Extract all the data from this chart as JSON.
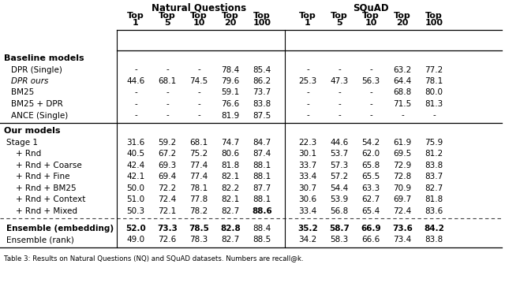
{
  "nq_header": "Natural Questions",
  "sq_header": "SQuAD",
  "section1_label": "Baseline models",
  "section2_label": "Our models",
  "rows_baseline": [
    {
      "name": "DPR (Single)",
      "italic": false,
      "nq": [
        "-",
        "-",
        "-",
        "78.4",
        "85.4"
      ],
      "sq": [
        "-",
        "-",
        "-",
        "63.2",
        "77.2"
      ]
    },
    {
      "name": "DPR ours",
      "italic": true,
      "nq": [
        "44.6",
        "68.1",
        "74.5",
        "79.6",
        "86.2"
      ],
      "sq": [
        "25.3",
        "47.3",
        "56.3",
        "64.4",
        "78.1"
      ]
    },
    {
      "name": "BM25",
      "italic": false,
      "nq": [
        "-",
        "-",
        "-",
        "59.1",
        "73.7"
      ],
      "sq": [
        "-",
        "-",
        "-",
        "68.8",
        "80.0"
      ]
    },
    {
      "name": "BM25 + DPR",
      "italic": false,
      "nq": [
        "-",
        "-",
        "-",
        "76.6",
        "83.8"
      ],
      "sq": [
        "-",
        "-",
        "-",
        "71.5",
        "81.3"
      ]
    },
    {
      "name": "ANCE (Single)",
      "italic": false,
      "nq": [
        "-",
        "-",
        "-",
        "81.9",
        "87.5"
      ],
      "sq": [
        "-",
        "-",
        "-",
        "-",
        "-"
      ]
    }
  ],
  "rows_ours": [
    {
      "name": "Stage 1",
      "nq": [
        "31.6",
        "59.2",
        "68.1",
        "74.7",
        "84.7"
      ],
      "sq": [
        "22.3",
        "44.6",
        "54.2",
        "61.9",
        "75.9"
      ],
      "bold_nq": [
        false,
        false,
        false,
        false,
        false
      ],
      "bold_sq": [
        false,
        false,
        false,
        false,
        false
      ]
    },
    {
      "name": "+ Rnd",
      "nq": [
        "40.5",
        "67.2",
        "75.2",
        "80.6",
        "87.4"
      ],
      "sq": [
        "30.1",
        "53.7",
        "62.0",
        "69.5",
        "81.2"
      ],
      "bold_nq": [
        false,
        false,
        false,
        false,
        false
      ],
      "bold_sq": [
        false,
        false,
        false,
        false,
        false
      ]
    },
    {
      "name": "+ Rnd + Coarse",
      "nq": [
        "42.4",
        "69.3",
        "77.4",
        "81.8",
        "88.1"
      ],
      "sq": [
        "33.7",
        "57.3",
        "65.8",
        "72.9",
        "83.8"
      ],
      "bold_nq": [
        false,
        false,
        false,
        false,
        false
      ],
      "bold_sq": [
        false,
        false,
        false,
        false,
        false
      ]
    },
    {
      "name": "+ Rnd + Fine",
      "nq": [
        "42.1",
        "69.4",
        "77.4",
        "82.1",
        "88.1"
      ],
      "sq": [
        "33.4",
        "57.2",
        "65.5",
        "72.8",
        "83.7"
      ],
      "bold_nq": [
        false,
        false,
        false,
        false,
        false
      ],
      "bold_sq": [
        false,
        false,
        false,
        false,
        false
      ]
    },
    {
      "name": "+ Rnd + BM25",
      "nq": [
        "50.0",
        "72.2",
        "78.1",
        "82.2",
        "87.7"
      ],
      "sq": [
        "30.7",
        "54.4",
        "63.3",
        "70.9",
        "82.7"
      ],
      "bold_nq": [
        false,
        false,
        false,
        false,
        false
      ],
      "bold_sq": [
        false,
        false,
        false,
        false,
        false
      ]
    },
    {
      "name": "+ Rnd + Context",
      "nq": [
        "51.0",
        "72.4",
        "77.8",
        "82.1",
        "88.1"
      ],
      "sq": [
        "30.6",
        "53.9",
        "62.7",
        "69.7",
        "81.8"
      ],
      "bold_nq": [
        false,
        false,
        false,
        false,
        false
      ],
      "bold_sq": [
        false,
        false,
        false,
        false,
        false
      ]
    },
    {
      "name": "+ Rnd + Mixed",
      "nq": [
        "50.3",
        "72.1",
        "78.2",
        "82.7",
        "88.6"
      ],
      "sq": [
        "33.4",
        "56.8",
        "65.4",
        "72.4",
        "83.6"
      ],
      "bold_nq": [
        false,
        false,
        false,
        false,
        true
      ],
      "bold_sq": [
        false,
        false,
        false,
        false,
        false
      ]
    }
  ],
  "rows_ensemble": [
    {
      "name": "Ensemble (embedding)",
      "bold_name": true,
      "nq": [
        "52.0",
        "73.3",
        "78.5",
        "82.8",
        "88.4"
      ],
      "sq": [
        "35.2",
        "58.7",
        "66.9",
        "73.6",
        "84.2"
      ],
      "bold_nq": [
        true,
        true,
        true,
        true,
        false
      ],
      "bold_sq": [
        true,
        true,
        true,
        true,
        true
      ]
    },
    {
      "name": "Ensemble (rank)",
      "bold_name": false,
      "nq": [
        "49.0",
        "72.6",
        "78.3",
        "82.7",
        "88.5"
      ],
      "sq": [
        "34.2",
        "58.3",
        "66.6",
        "73.4",
        "83.8"
      ],
      "bold_nq": [
        false,
        false,
        false,
        false,
        false
      ],
      "bold_sq": [
        false,
        false,
        false,
        false,
        false
      ]
    }
  ],
  "caption": "Table 3: Results on Natural Questions (NQ) and SQuAD datasets. Numbers are recall@k."
}
